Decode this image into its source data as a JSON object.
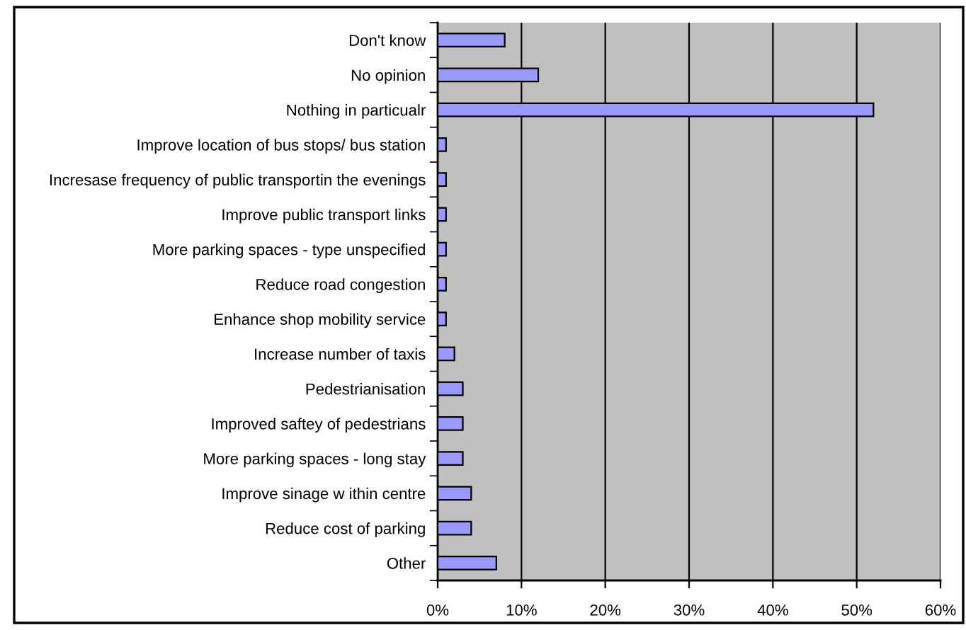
{
  "chart_data": {
    "type": "bar",
    "orientation": "horizontal",
    "categories": [
      "Don't know",
      "No opinion",
      "Nothing in particualr",
      "Improve location of bus stops/ bus station",
      "Incresase frequency of public transportin the evenings",
      "Improve public transport links",
      "More parking spaces - type unspecified",
      "Reduce road congestion",
      "Enhance shop mobility service",
      "Increase number of taxis",
      "Pedestrianisation",
      "Improved saftey of pedestrians",
      "More parking spaces - long stay",
      "Improve sinage w ithin centre",
      "Reduce cost of parking",
      "Other"
    ],
    "values": [
      8,
      12,
      52,
      1,
      1,
      1,
      1,
      1,
      1,
      2,
      3,
      3,
      3,
      4,
      4,
      7
    ],
    "color": "#9999ff",
    "xlim": [
      0,
      60
    ],
    "xticks": [
      {
        "value": 0,
        "label": "0%"
      },
      {
        "value": 10,
        "label": "10%"
      },
      {
        "value": 20,
        "label": "20%"
      },
      {
        "value": 30,
        "label": "30%"
      },
      {
        "value": 40,
        "label": "40%"
      },
      {
        "value": 50,
        "label": "50%"
      },
      {
        "value": 60,
        "label": "60%"
      }
    ],
    "grid": "x",
    "legend": false
  }
}
